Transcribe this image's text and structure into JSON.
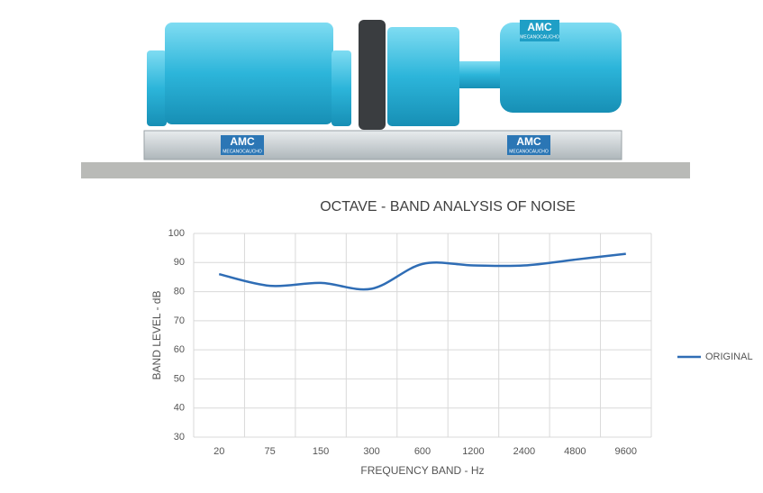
{
  "illustration": {
    "brand": "AMC",
    "brand_name": "MECANOCAUCHO"
  },
  "chart_data": {
    "type": "line",
    "title": "OCTAVE - BAND ANALYSIS OF NOISE",
    "x_label": "FREQUENCY BAND - Hz",
    "y_label": "BAND LEVEL - dB",
    "categories": [
      "20",
      "75",
      "150",
      "300",
      "600",
      "1200",
      "2400",
      "4800",
      "9600"
    ],
    "series": [
      {
        "name": "ORIGINAL",
        "color": "#2f6db5",
        "values": [
          86,
          82,
          83,
          81,
          89.5,
          89,
          89,
          91,
          93
        ]
      }
    ],
    "ylim": [
      30,
      100
    ],
    "yticks": [
      30,
      40,
      50,
      60,
      70,
      80,
      90,
      100
    ],
    "grid": true,
    "legend": "right"
  }
}
